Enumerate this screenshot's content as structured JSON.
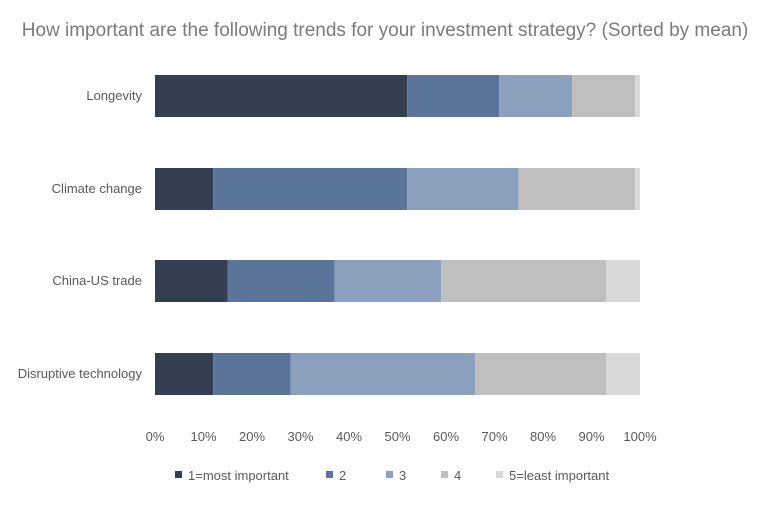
{
  "chart_data": {
    "type": "bar",
    "orientation": "horizontal",
    "stacked": true,
    "title": "How important are the following trends for your investment strategy? (Sorted by mean)",
    "categories": [
      "Longevity",
      "Climate change",
      "China-US trade",
      "Disruptive technology"
    ],
    "series": [
      {
        "name": "1=most important",
        "color": "#333f50",
        "values": [
          52,
          12,
          15,
          12
        ]
      },
      {
        "name": "2",
        "color": "#5a7599",
        "values": [
          19,
          40,
          22,
          16
        ]
      },
      {
        "name": "3",
        "color": "#8aa0bc",
        "values": [
          15,
          23,
          22,
          38
        ]
      },
      {
        "name": "4",
        "color": "#bfbfbf",
        "values": [
          13,
          24,
          34,
          27
        ]
      },
      {
        "name": "5=least important",
        "color": "#d9d9d9",
        "values": [
          1,
          1,
          7,
          7
        ]
      }
    ],
    "x_ticks": [
      "0%",
      "10%",
      "20%",
      "30%",
      "40%",
      "50%",
      "60%",
      "70%",
      "80%",
      "90%",
      "100%"
    ],
    "xlim": [
      0,
      100
    ],
    "grid": false,
    "legend_position": "bottom"
  }
}
